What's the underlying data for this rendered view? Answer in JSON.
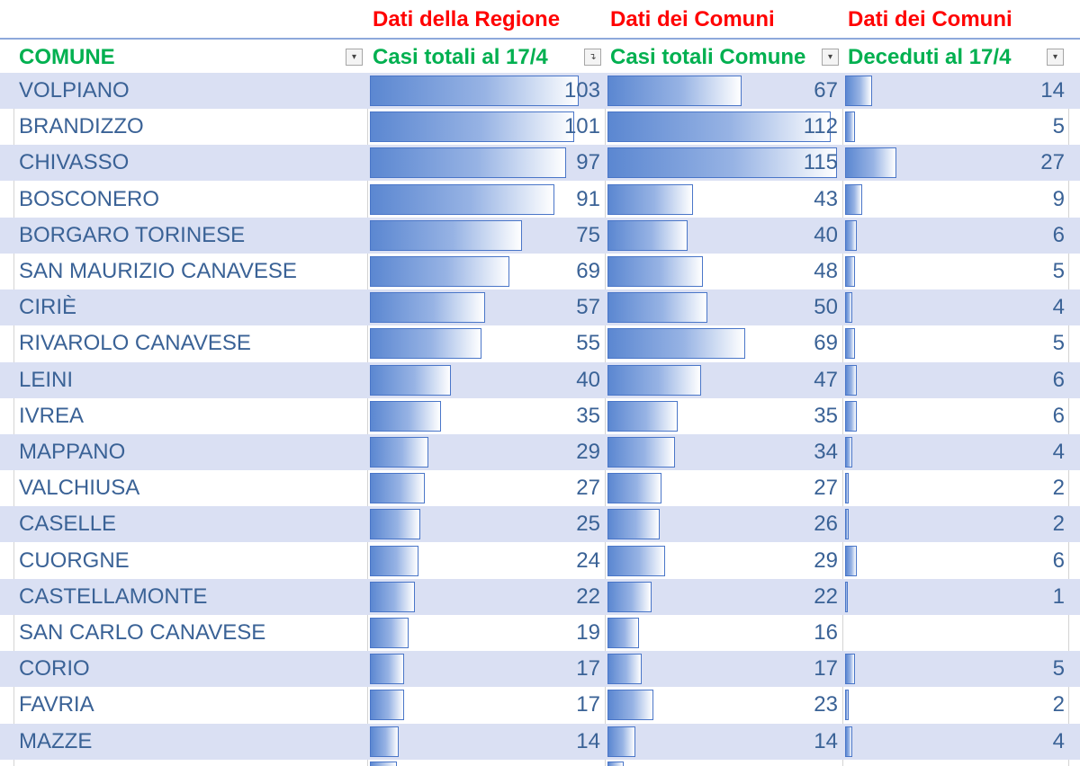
{
  "group_headers": {
    "col2": "Dati della Regione",
    "col3": "Dati dei Comuni",
    "col4": "Dati dei Comuni"
  },
  "column_headers": {
    "comune": "COMUNE",
    "casi_regione": "Casi totali al 17/4",
    "casi_comune": "Casi totali Comune",
    "deceduti": "Deceduti al 17/4"
  },
  "filter_icons": {
    "comune": "filter-dropdown-icon",
    "casi_regione": "sort-filter-applied-icon",
    "casi_comune": "filter-dropdown-icon",
    "deceduti": "filter-dropdown-icon"
  },
  "bar_color": "#5b87d1",
  "rows": [
    {
      "comune": "VOLPIANO",
      "casi_regione": 103,
      "casi_comune": 67,
      "deceduti": 14
    },
    {
      "comune": "BRANDIZZO",
      "casi_regione": 101,
      "casi_comune": 112,
      "deceduti": 5
    },
    {
      "comune": "CHIVASSO",
      "casi_regione": 97,
      "casi_comune": 115,
      "deceduti": 27
    },
    {
      "comune": "BOSCONERO",
      "casi_regione": 91,
      "casi_comune": 43,
      "deceduti": 9
    },
    {
      "comune": "BORGARO TORINESE",
      "casi_regione": 75,
      "casi_comune": 40,
      "deceduti": 6
    },
    {
      "comune": "SAN MAURIZIO CANAVESE",
      "casi_regione": 69,
      "casi_comune": 48,
      "deceduti": 5
    },
    {
      "comune": "CIRIÈ",
      "casi_regione": 57,
      "casi_comune": 50,
      "deceduti": 4
    },
    {
      "comune": "RIVAROLO CANAVESE",
      "casi_regione": 55,
      "casi_comune": 69,
      "deceduti": 5
    },
    {
      "comune": "LEINI",
      "casi_regione": 40,
      "casi_comune": 47,
      "deceduti": 6
    },
    {
      "comune": "IVREA",
      "casi_regione": 35,
      "casi_comune": 35,
      "deceduti": 6
    },
    {
      "comune": "MAPPANO",
      "casi_regione": 29,
      "casi_comune": 34,
      "deceduti": 4
    },
    {
      "comune": "VALCHIUSA",
      "casi_regione": 27,
      "casi_comune": 27,
      "deceduti": 2
    },
    {
      "comune": "CASELLE",
      "casi_regione": 25,
      "casi_comune": 26,
      "deceduti": 2
    },
    {
      "comune": "CUORGNE",
      "casi_regione": 24,
      "casi_comune": 29,
      "deceduti": 6
    },
    {
      "comune": "CASTELLAMONTE",
      "casi_regione": 22,
      "casi_comune": 22,
      "deceduti": 1
    },
    {
      "comune": "SAN CARLO CANAVESE",
      "casi_regione": 19,
      "casi_comune": 16,
      "deceduti": null
    },
    {
      "comune": "CORIO",
      "casi_regione": 17,
      "casi_comune": 17,
      "deceduti": 5
    },
    {
      "comune": "FAVRIA",
      "casi_regione": 17,
      "casi_comune": 23,
      "deceduti": 2
    },
    {
      "comune": "MAZZE",
      "casi_regione": 14,
      "casi_comune": 14,
      "deceduti": 4
    }
  ]
}
